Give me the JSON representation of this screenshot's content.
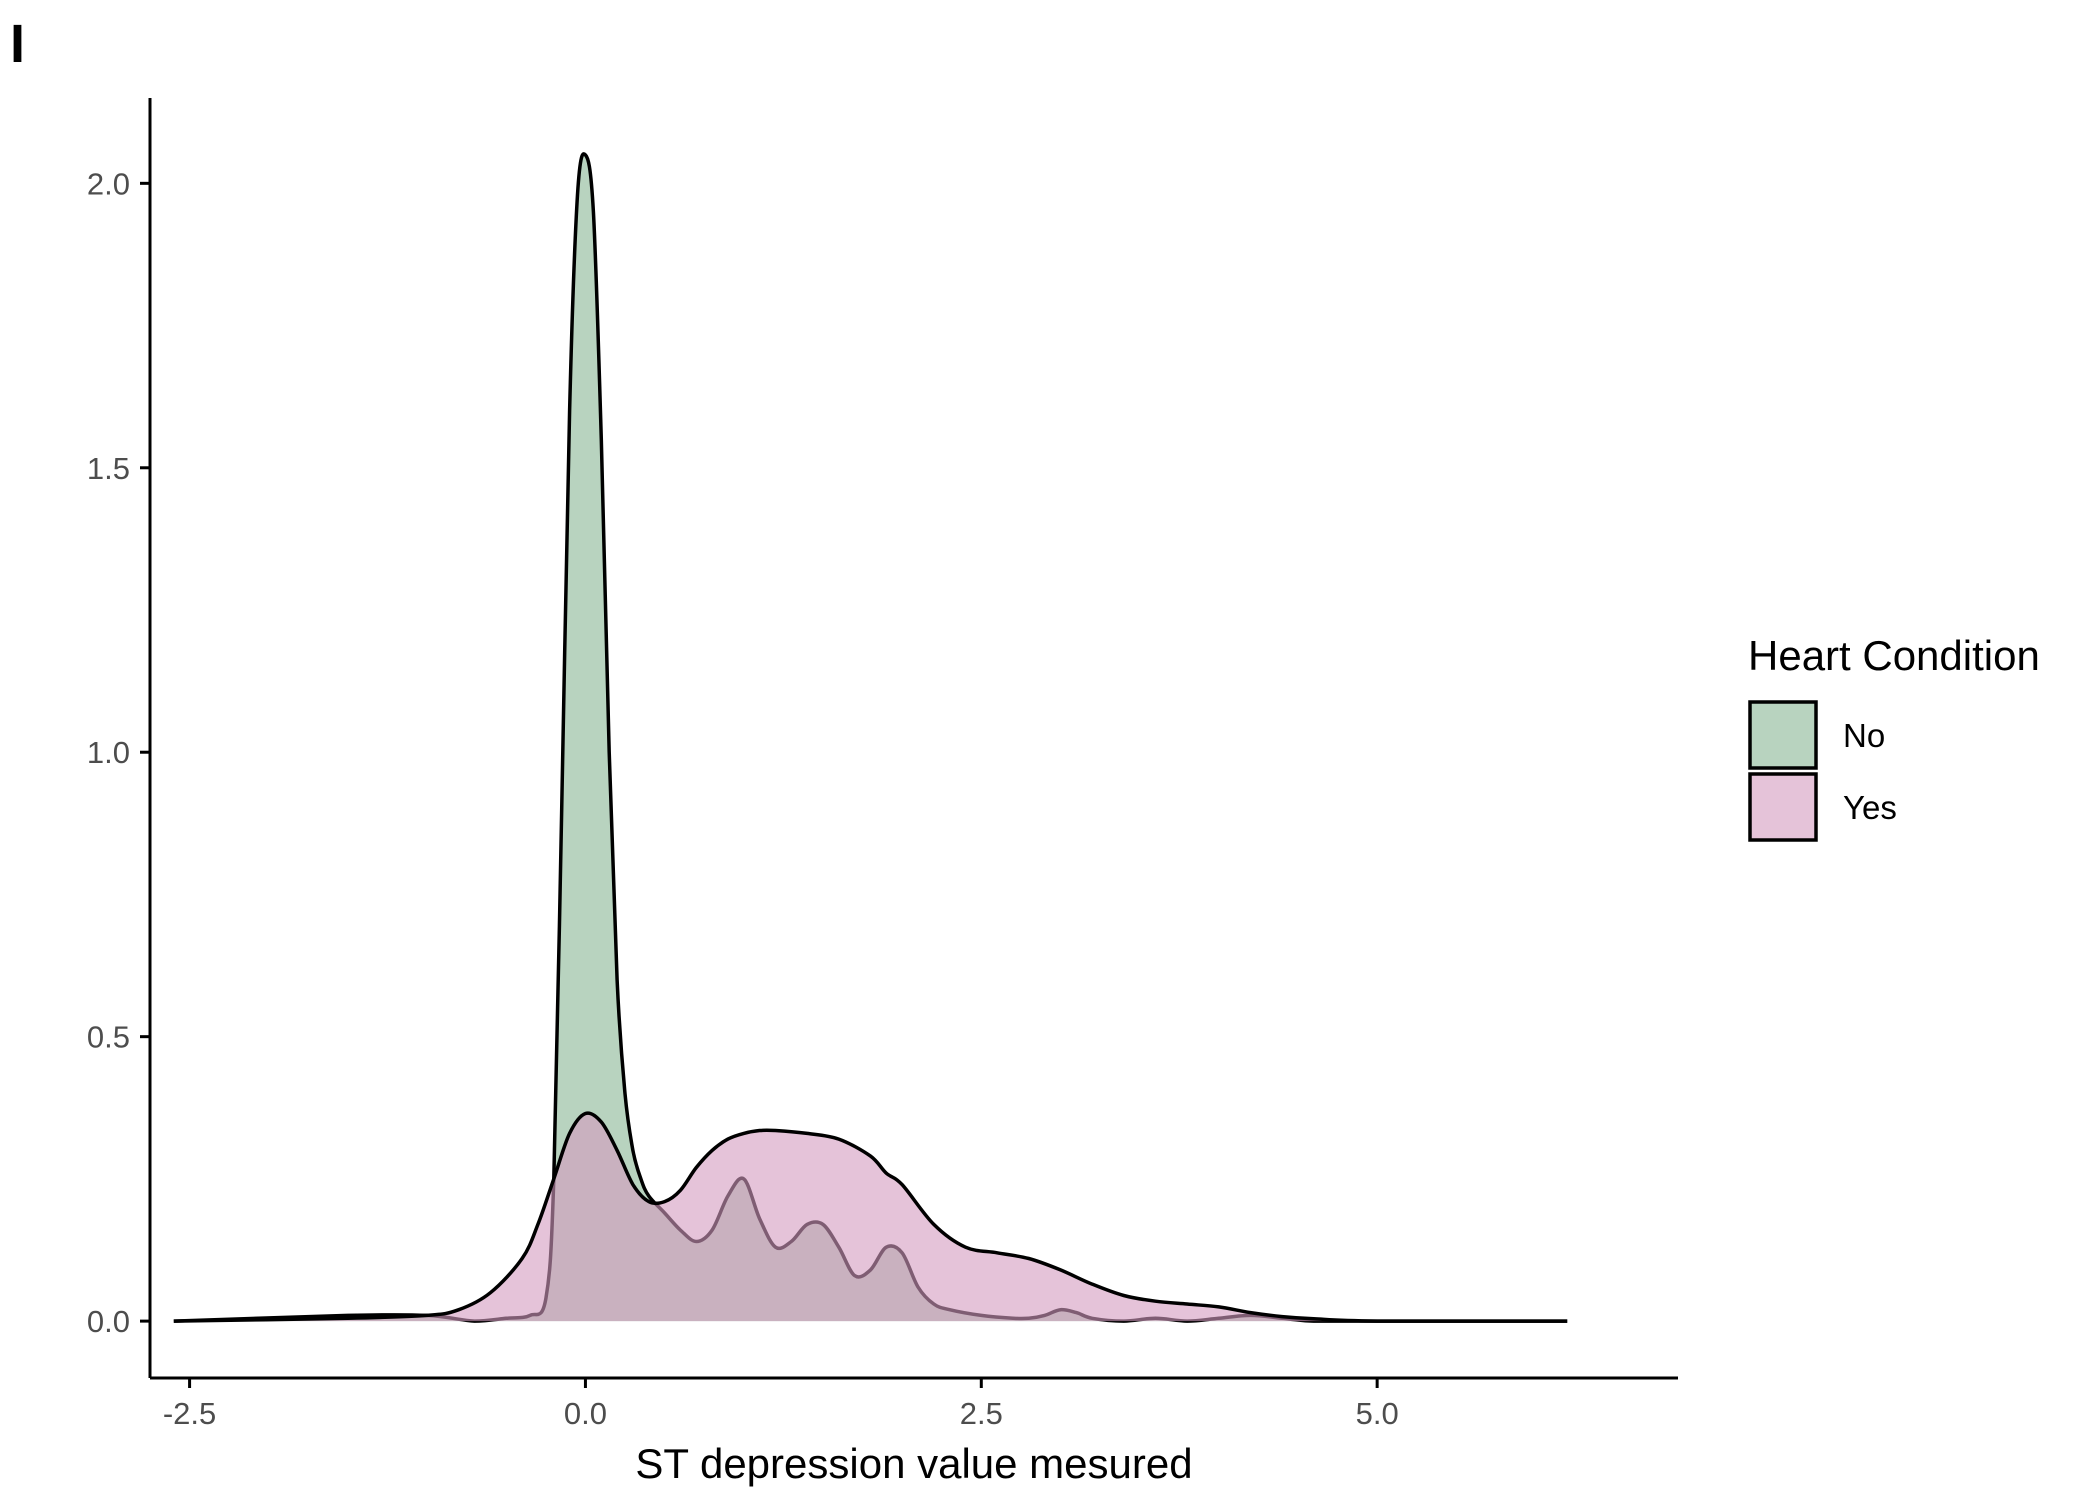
{
  "panel_tag": "I",
  "chart_data": {
    "type": "area",
    "title": "",
    "xlabel": "ST depression value mesured",
    "ylabel": "",
    "xlim": [
      -2.75,
      6.9
    ],
    "ylim": [
      -0.1,
      2.15
    ],
    "x_ticks": [
      -2.5,
      0.0,
      2.5,
      5.0
    ],
    "x_tick_labels": [
      "-2.5",
      "0.0",
      "2.5",
      "5.0"
    ],
    "y_ticks": [
      0.0,
      0.5,
      1.0,
      1.5,
      2.0
    ],
    "y_tick_labels": [
      "0.0",
      "0.5",
      "1.0",
      "1.5",
      "2.0"
    ],
    "grid": false,
    "legend": {
      "title": "Heart Condition",
      "position": "right",
      "entries": [
        "No",
        "Yes"
      ]
    },
    "series": [
      {
        "name": "No",
        "color": "#88b694",
        "x": [
          -2.6,
          -1.5,
          -1.0,
          -0.7,
          -0.5,
          -0.35,
          -0.25,
          -0.2,
          -0.15,
          -0.1,
          -0.05,
          0.0,
          0.05,
          0.1,
          0.15,
          0.2,
          0.25,
          0.3,
          0.35,
          0.4,
          0.5,
          0.6,
          0.7,
          0.8,
          0.9,
          1.0,
          1.1,
          1.2,
          1.3,
          1.4,
          1.5,
          1.6,
          1.7,
          1.8,
          1.9,
          2.0,
          2.1,
          2.2,
          2.3,
          2.5,
          2.7,
          2.8,
          2.9,
          3.0,
          3.1,
          3.2,
          3.4,
          3.6,
          3.8,
          4.0,
          4.2,
          4.4,
          4.6,
          5.0,
          6.2
        ],
        "y": [
          0.0,
          0.01,
          0.01,
          0.0,
          0.005,
          0.01,
          0.04,
          0.25,
          0.9,
          1.6,
          1.98,
          2.05,
          1.95,
          1.55,
          1.0,
          0.6,
          0.4,
          0.3,
          0.25,
          0.22,
          0.19,
          0.16,
          0.14,
          0.16,
          0.22,
          0.25,
          0.18,
          0.13,
          0.14,
          0.17,
          0.17,
          0.13,
          0.08,
          0.09,
          0.13,
          0.12,
          0.06,
          0.03,
          0.02,
          0.01,
          0.005,
          0.005,
          0.01,
          0.02,
          0.015,
          0.005,
          0.0,
          0.005,
          0.0,
          0.005,
          0.01,
          0.005,
          0.0,
          0.0,
          0.0
        ]
      },
      {
        "name": "Yes",
        "color": "#d49bc0",
        "x": [
          -2.6,
          -1.5,
          -1.0,
          -0.8,
          -0.6,
          -0.4,
          -0.3,
          -0.2,
          -0.1,
          0.0,
          0.1,
          0.2,
          0.3,
          0.4,
          0.5,
          0.6,
          0.7,
          0.8,
          0.9,
          1.0,
          1.1,
          1.2,
          1.4,
          1.6,
          1.8,
          1.9,
          2.0,
          2.2,
          2.4,
          2.6,
          2.8,
          3.0,
          3.2,
          3.4,
          3.6,
          3.8,
          4.0,
          4.2,
          4.4,
          4.6,
          5.0,
          6.2
        ],
        "y": [
          0.0,
          0.005,
          0.01,
          0.02,
          0.05,
          0.11,
          0.17,
          0.25,
          0.33,
          0.365,
          0.35,
          0.3,
          0.24,
          0.21,
          0.21,
          0.23,
          0.27,
          0.3,
          0.32,
          0.33,
          0.335,
          0.335,
          0.33,
          0.32,
          0.29,
          0.26,
          0.24,
          0.17,
          0.13,
          0.12,
          0.11,
          0.09,
          0.065,
          0.045,
          0.035,
          0.03,
          0.025,
          0.015,
          0.008,
          0.004,
          0.0,
          0.0
        ]
      }
    ]
  }
}
